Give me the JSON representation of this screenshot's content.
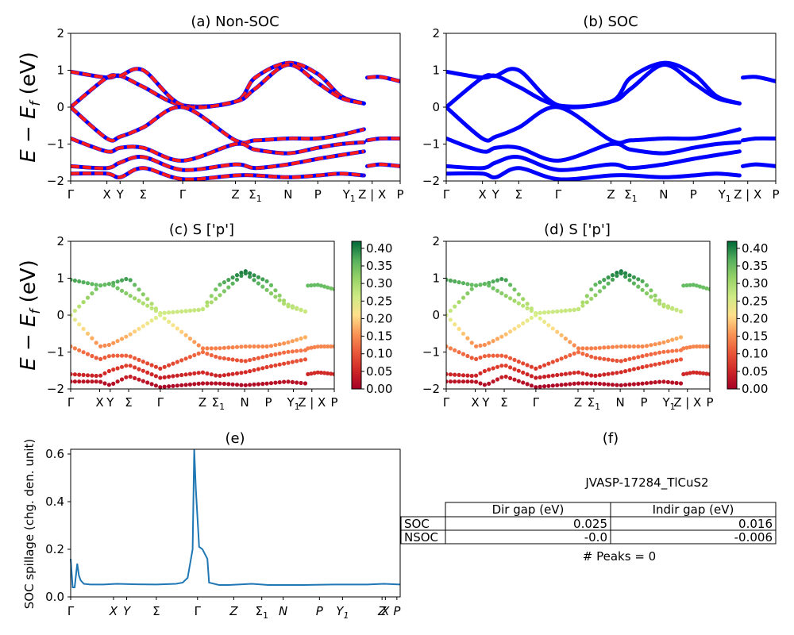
{
  "panels": {
    "a": {
      "title": "(a) Non-SOC"
    },
    "b": {
      "title": "(b) SOC"
    },
    "c": {
      "title": "(c)  S ['p']"
    },
    "d": {
      "title": "(d) S ['p']"
    },
    "e": {
      "title": "(e)"
    },
    "f": {
      "title": "(f)"
    }
  },
  "band_ylabel_main": "E − E",
  "band_ylabel_sub": "f",
  "band_ylabel_unit": " (eV)",
  "band_yticks": [
    "2",
    "1",
    "0",
    "−1",
    "−2"
  ],
  "kpath_labels": [
    "Γ",
    "X",
    "Y",
    "Σ",
    "Γ",
    "Z",
    "Σ",
    "N",
    "P",
    "Y",
    "Z | X",
    "P"
  ],
  "kpath_subscripts": {
    "6": "1",
    "9": "1"
  },
  "colorbar_ticks": [
    "0.40",
    "0.35",
    "0.30",
    "0.25",
    "0.20",
    "0.15",
    "0.10",
    "0.05",
    "0.00"
  ],
  "spillage": {
    "ylabel": "SOC spillage (chg. den. unit)",
    "yticks": [
      "0.6",
      "0.4",
      "0.2",
      "0.0"
    ],
    "xlabels": [
      "Γ",
      "X",
      "Y",
      "Σ",
      "Γ",
      "Z",
      "Σ",
      "N",
      "P",
      "Y",
      "Z",
      "X",
      "P"
    ]
  },
  "table": {
    "name": "JVASP-17284_TlCuS2",
    "headers": [
      "Dir gap (eV)",
      "Indir gap (eV)"
    ],
    "rows": [
      {
        "label": "SOC",
        "dir": "0.025",
        "indir": "0.016"
      },
      {
        "label": "NSOC",
        "dir": "-0.0",
        "indir": "-0.006"
      }
    ],
    "peaks": "# Peaks = 0"
  },
  "colors": {
    "soc_band": "#0000ff",
    "nsoc_band": "#ff1a1a",
    "spillage_line": "#1f77b4"
  },
  "chart_data": [
    {
      "type": "line",
      "title": "(a) Non-SOC",
      "ylabel": "E − E_f (eV)",
      "ylim": [
        -2,
        2
      ],
      "x_ticks": [
        "Γ",
        "X",
        "Y",
        "Σ",
        "Γ",
        "Z",
        "Σ1",
        "N",
        "P",
        "Y1",
        "Z | X",
        "P"
      ],
      "note": "band structure, red dashed over blue",
      "series": [
        {
          "x": [
            0,
            0.11,
            0.15,
            0.22,
            0.34,
            0.5,
            0.56,
            0.66,
            0.75,
            0.82,
            0.89
          ],
          "y": [
            0.96,
            0.8,
            0.85,
            0.55,
            0.05,
            0.15,
            0.8,
            1.2,
            0.9,
            0.3,
            0.1
          ]
        },
        {
          "x": [
            0,
            0.11,
            0.15,
            0.22,
            0.34,
            0.5,
            0.56,
            0.66,
            0.75,
            0.82,
            0.89
          ],
          "y": [
            0.0,
            0.8,
            0.85,
            1.0,
            0.05,
            0.15,
            0.5,
            1.15,
            0.65,
            0.25,
            0.1
          ]
        },
        {
          "x": [
            0,
            0.11,
            0.15,
            0.22,
            0.34,
            0.5,
            0.56,
            0.66,
            0.75,
            0.82,
            0.89
          ],
          "y": [
            0.0,
            -0.85,
            -0.8,
            -0.55,
            0.0,
            -0.9,
            -0.9,
            -0.85,
            -0.85,
            -0.75,
            -0.6
          ]
        },
        {
          "x": [
            0,
            0.11,
            0.15,
            0.22,
            0.34,
            0.5,
            0.56,
            0.66,
            0.75,
            0.82,
            0.89
          ],
          "y": [
            -0.85,
            -1.2,
            -1.1,
            -1.1,
            -1.45,
            -1.0,
            -1.15,
            -1.25,
            -1.1,
            -1.0,
            -0.95
          ]
        },
        {
          "x": [
            0,
            0.11,
            0.15,
            0.22,
            0.34,
            0.5,
            0.56,
            0.66,
            0.75,
            0.82,
            0.89
          ],
          "y": [
            -1.6,
            -1.65,
            -1.5,
            -1.35,
            -1.7,
            -1.55,
            -1.65,
            -1.55,
            -1.4,
            -1.3,
            -1.2
          ]
        },
        {
          "x": [
            0,
            0.11,
            0.15,
            0.22,
            0.34,
            0.5,
            0.56,
            0.66,
            0.75,
            0.82,
            0.89
          ],
          "y": [
            -1.8,
            -1.8,
            -1.9,
            -1.65,
            -1.95,
            -1.85,
            -1.85,
            -1.9,
            -1.85,
            -1.8,
            -1.85
          ]
        },
        {
          "x": [
            0.9,
            0.94,
            1.0
          ],
          "y": [
            0.8,
            0.82,
            0.7
          ]
        },
        {
          "x": [
            0.9,
            0.94,
            1.0
          ],
          "y": [
            -0.9,
            -0.85,
            -0.85
          ]
        },
        {
          "x": [
            0.9,
            0.94,
            1.0
          ],
          "y": [
            -1.6,
            -1.55,
            -1.6
          ]
        }
      ]
    },
    {
      "type": "line",
      "title": "(b) SOC",
      "ylim": [
        -2,
        2
      ],
      "x_ticks": [
        "Γ",
        "X",
        "Y",
        "Σ",
        "Γ",
        "Z",
        "Σ1",
        "N",
        "P",
        "Y1",
        "Z | X",
        "P"
      ],
      "note": "same band shape as (a), blue"
    },
    {
      "type": "scatter",
      "title": "(c)  S ['p']",
      "ylim": [
        -2,
        2
      ],
      "colorbar": [
        0.0,
        0.42
      ],
      "x_ticks": [
        "Γ",
        "X",
        "Y",
        "Σ",
        "Γ",
        "Z",
        "Σ1",
        "N",
        "P",
        "Y1",
        "Z | X",
        "P"
      ]
    },
    {
      "type": "scatter",
      "title": "(d) S ['p']",
      "ylim": [
        -2,
        2
      ],
      "colorbar": [
        0.0,
        0.42
      ],
      "x_ticks": [
        "Γ",
        "X",
        "Y",
        "Σ",
        "Γ",
        "Z",
        "Σ1",
        "N",
        "P",
        "Y1",
        "Z | X",
        "P"
      ]
    },
    {
      "type": "line",
      "title": "(e)",
      "ylabel": "SOC spillage (chg. den. unit)",
      "ylim": [
        0,
        0.62
      ],
      "x": [
        0,
        0.006,
        0.012,
        0.02,
        0.025,
        0.03,
        0.04,
        0.06,
        0.1,
        0.14,
        0.2,
        0.26,
        0.32,
        0.34,
        0.355,
        0.36,
        0.37,
        0.375,
        0.38,
        0.39,
        0.4,
        0.415,
        0.42,
        0.45,
        0.48,
        0.55,
        0.6,
        0.7,
        0.8,
        0.9,
        0.95,
        1.0
      ],
      "y": [
        0.16,
        0.04,
        0.04,
        0.14,
        0.09,
        0.07,
        0.055,
        0.052,
        0.052,
        0.055,
        0.053,
        0.052,
        0.055,
        0.06,
        0.08,
        0.12,
        0.2,
        0.62,
        0.45,
        0.21,
        0.2,
        0.16,
        0.06,
        0.05,
        0.05,
        0.055,
        0.05,
        0.05,
        0.052,
        0.052,
        0.055,
        0.052
      ]
    }
  ]
}
